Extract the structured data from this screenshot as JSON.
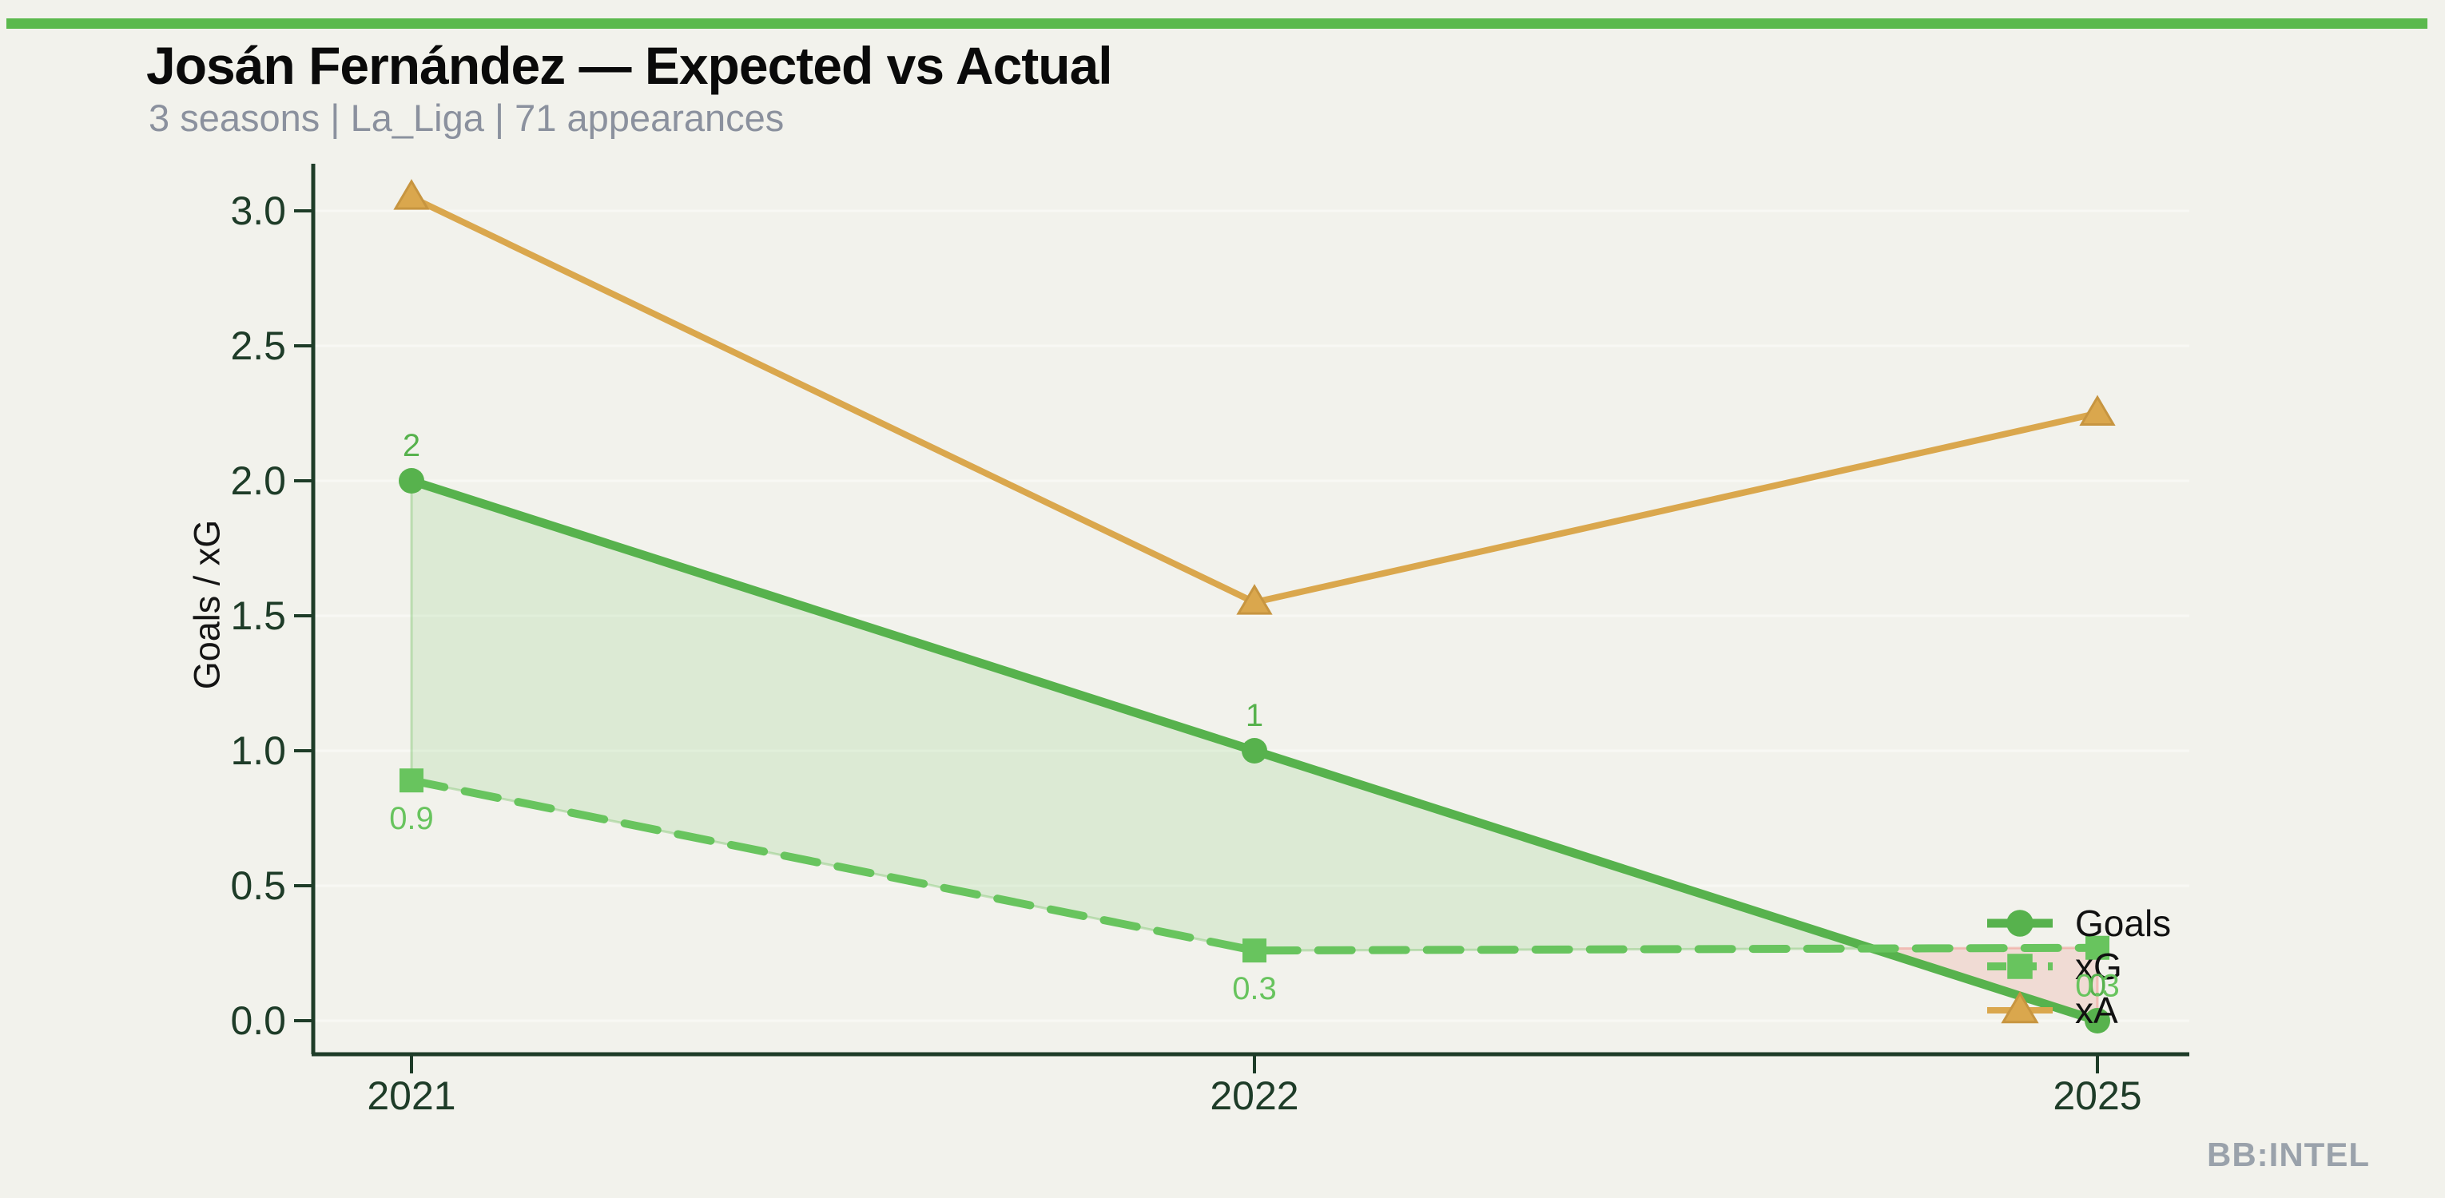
{
  "page": {
    "background": "#f2f2ec"
  },
  "header": {
    "accent_bar_color": "#5bb94d"
  },
  "branding": {
    "watermark": "BB:INTEL",
    "watermark_color": "#9aa2ab"
  },
  "chart_data": {
    "type": "line",
    "title": "Josán Fernández — Expected vs Actual",
    "subtitle": "3 seasons | La_Liga | 71 appearances",
    "x": [
      "2021",
      "2022",
      "2025"
    ],
    "xlabel": "",
    "ylabel": "Goals / xG",
    "yticks": [
      0.0,
      0.5,
      1.0,
      1.5,
      2.0,
      2.5,
      3.0
    ],
    "ylim": [
      -0.12,
      3.17
    ],
    "grid": true,
    "legend_position": "lower right",
    "series": [
      {
        "name": "Goals",
        "values": [
          2,
          1,
          0
        ],
        "point_labels": [
          "2",
          "1",
          "0"
        ],
        "label_side": "above",
        "color": "#57b24d",
        "marker": "circle",
        "line_style": "solid",
        "line_width": 11
      },
      {
        "name": "xG",
        "values": [
          0.89,
          0.26,
          0.27
        ],
        "point_labels": [
          "0.9",
          "0.3",
          "0.3"
        ],
        "label_side": "below",
        "color": "#68c45e",
        "marker": "square",
        "line_style": "dashed",
        "line_width": 10
      },
      {
        "name": "xA",
        "values": [
          3.05,
          1.55,
          2.25
        ],
        "point_labels": [],
        "label_side": "none",
        "color": "#daa74d",
        "marker": "triangle",
        "line_style": "solid",
        "line_width": 8
      }
    ],
    "fill_between": {
      "series_a": "Goals",
      "series_b": "xG",
      "above_fill": "rgba(105,190,90,0.16)",
      "above_edge": "rgba(105,190,90,0.35)",
      "below_fill": "rgba(235,130,120,0.20)",
      "below_edge": "rgba(240,140,130,0.45)"
    },
    "style": {
      "axis_color": "#1e3c28",
      "grid_color": "rgba(255,255,255,0.45)",
      "tick_label_size": 50,
      "legend_text_color": "#111111",
      "ylabel_color": "#141414",
      "marker_edge_orange": "#c79540"
    }
  }
}
